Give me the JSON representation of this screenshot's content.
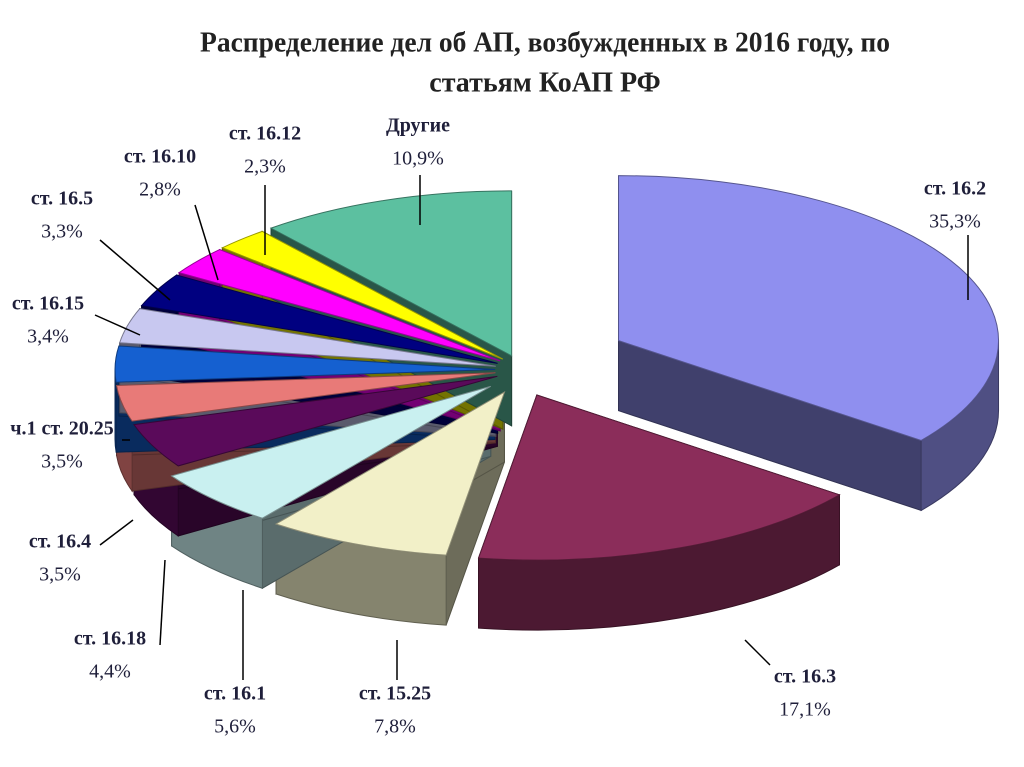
{
  "chart_data": {
    "type": "pie",
    "title": [
      "Распределение дел об АП, возбужденных в 2016 году, по",
      "статьям  КоАП РФ"
    ],
    "categories": [
      "ст. 16.2",
      "ст. 16.3",
      "ст. 15.25",
      "ст. 16.1",
      "ст. 16.18",
      "ст. 16.4",
      "ч.1 ст. 20.25",
      "ст. 16.15",
      "ст. 16.5",
      "ст. 16.10",
      "ст. 16.12",
      "Другие"
    ],
    "values": [
      35.3,
      17.1,
      7.8,
      5.6,
      4.4,
      3.5,
      3.5,
      3.4,
      3.3,
      2.8,
      2.3,
      10.9
    ],
    "value_labels": [
      "35,3%",
      "17,1%",
      "7,8%",
      "5,6%",
      "4,4%",
      "3,5%",
      "3,5%",
      "3,4%",
      "3,3%",
      "2,8%",
      "2,3%",
      "10,9%"
    ],
    "colors": [
      "#8f8fef",
      "#8b2d5a",
      "#f2f0c8",
      "#c9f0f0",
      "#5a0a5a",
      "#e87a78",
      "#1560d0",
      "#c8c8f0",
      "#000080",
      "#ff00ff",
      "#ffff00",
      "#5cc0a0"
    ]
  }
}
